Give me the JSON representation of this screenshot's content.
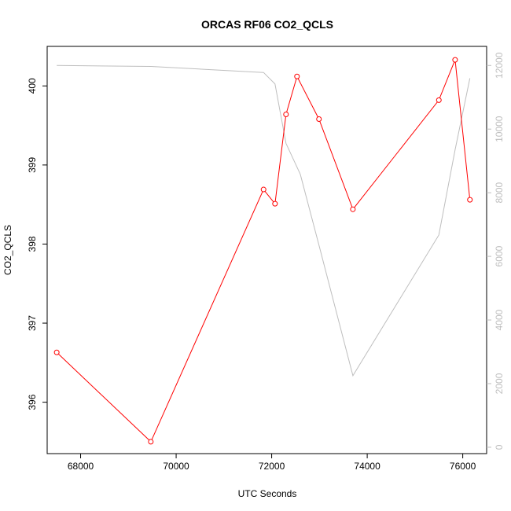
{
  "chart_data": {
    "type": "line",
    "title": "ORCAS RF06 CO2_QCLS",
    "xlabel": "UTC Seconds",
    "ylabel": "CO2_QCLS",
    "xlim": [
      67300,
      76500
    ],
    "ylim": [
      395.35,
      400.5
    ],
    "y2lim": [
      -200,
      12600
    ],
    "x_ticks": [
      68000,
      70000,
      72000,
      74000,
      76000
    ],
    "x_tick_labels": [
      "68000",
      "70000",
      "72000",
      "74000",
      "76000"
    ],
    "y_ticks": [
      396,
      397,
      398,
      399,
      400
    ],
    "y_tick_labels": [
      "396",
      "397",
      "398",
      "399",
      "400"
    ],
    "y2_ticks": [
      0,
      2000,
      4000,
      6000,
      8000,
      10000,
      12000
    ],
    "y2_tick_labels": [
      "0",
      "2000",
      "4000",
      "6000",
      "8000",
      "10000",
      "12000"
    ],
    "series": [
      {
        "axis": "left",
        "color": "#ff0000",
        "markers": true,
        "x": [
          67500,
          69470,
          71830,
          72070,
          72300,
          72530,
          72990,
          73700,
          75500,
          75840,
          76150
        ],
        "y": [
          396.63,
          395.5,
          398.69,
          398.51,
          399.64,
          400.12,
          399.58,
          398.44,
          399.82,
          400.33,
          398.56
        ]
      },
      {
        "axis": "right",
        "color": "#bebebe",
        "markers": false,
        "x": [
          67500,
          69470,
          71830,
          72070,
          72300,
          72600,
          73000,
          73700,
          75500,
          75840,
          76150
        ],
        "y": [
          12000,
          11970,
          11780,
          11420,
          9550,
          8580,
          6300,
          2250,
          6670,
          9350,
          11600
        ]
      }
    ]
  }
}
